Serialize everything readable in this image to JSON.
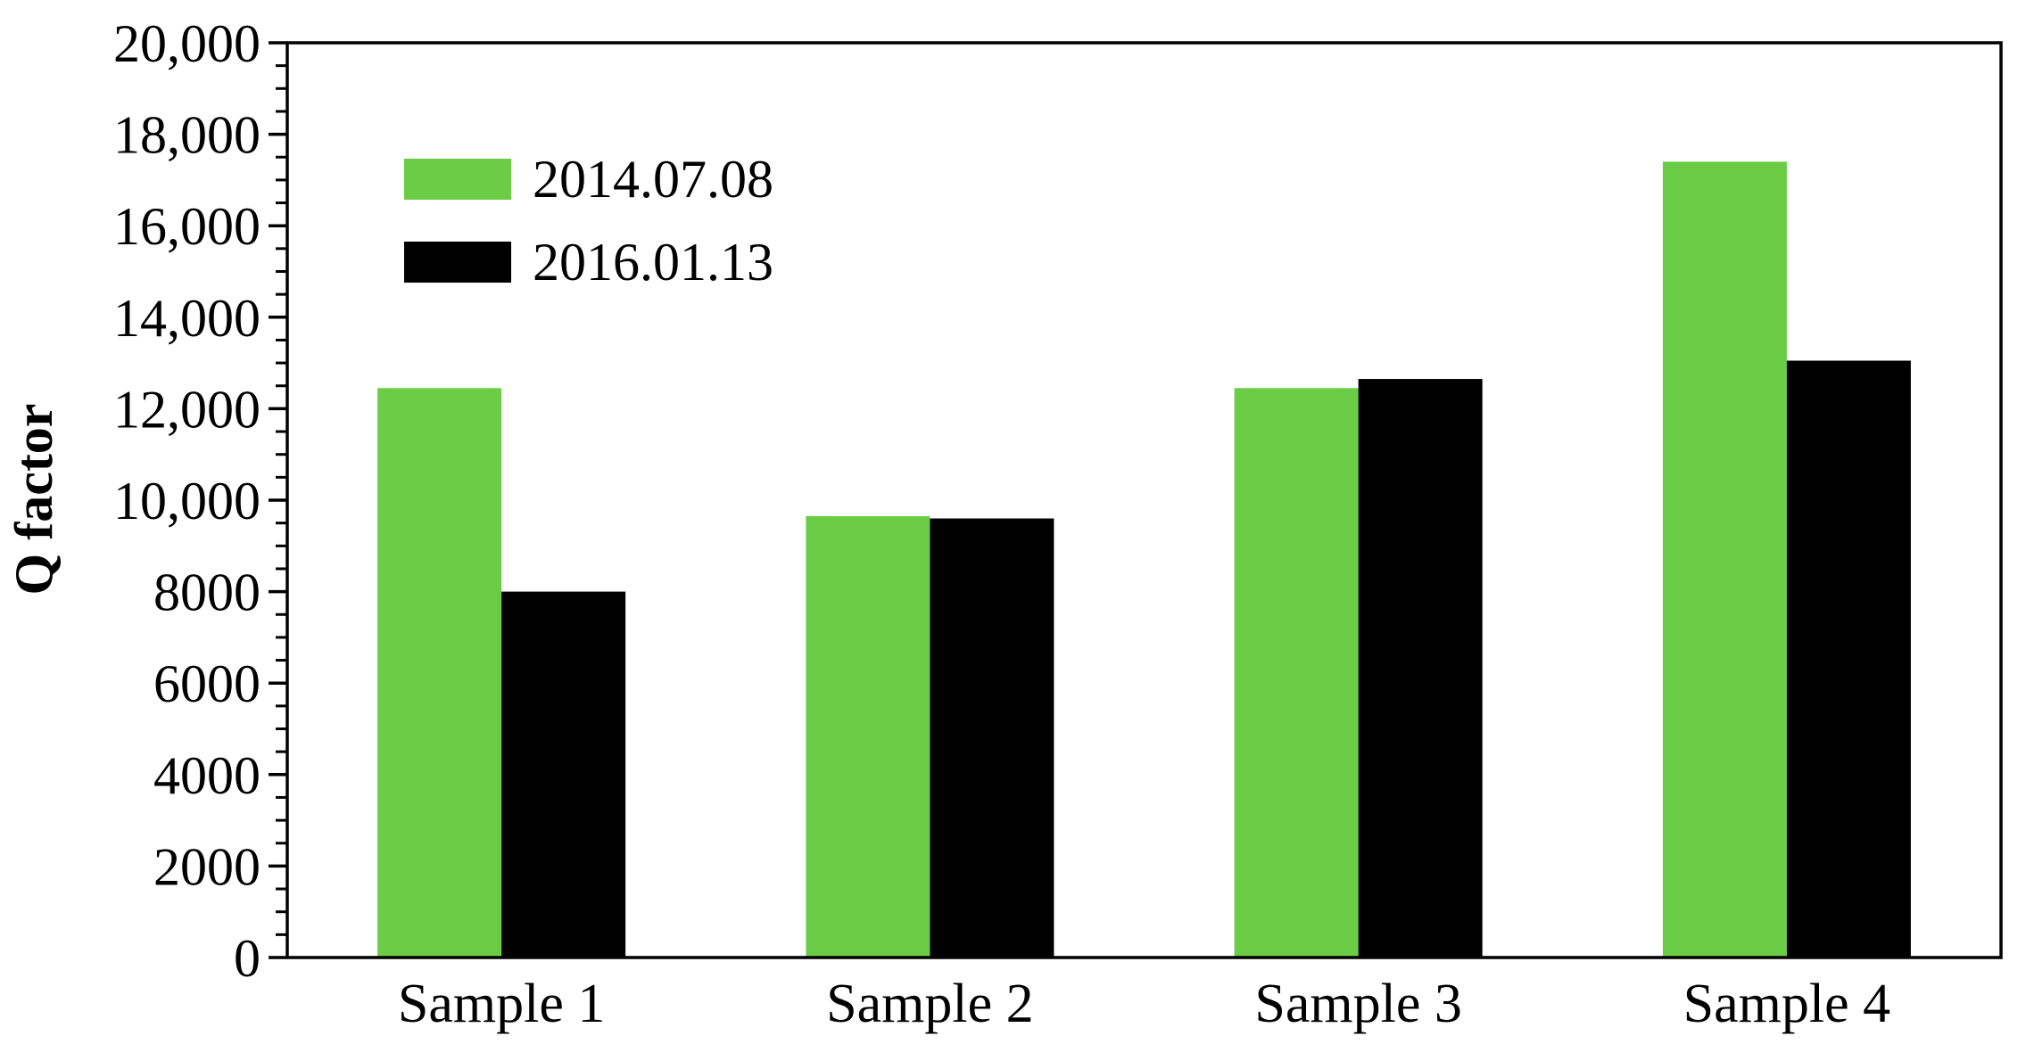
{
  "chart_data": {
    "type": "bar",
    "title": "",
    "categories": [
      "Sample 1",
      "Sample 2",
      "Sample 3",
      "Sample 4"
    ],
    "series": [
      {
        "name": "2014.07.08",
        "color": "#6acd45",
        "values": [
          12450,
          9650,
          12450,
          17400
        ]
      },
      {
        "name": "2016.01.13",
        "color": "#000000",
        "values": [
          8000,
          9600,
          12650,
          13050
        ]
      }
    ],
    "xlabel": "",
    "ylabel": "Q factor",
    "ylim": [
      0,
      20000
    ],
    "ytick_interval": 2000,
    "ytick_minor_interval": 500,
    "ytick_labels": [
      "0",
      "2000",
      "4000",
      "6000",
      "8000",
      "10,000",
      "12,000",
      "14,000",
      "16,000",
      "18,000",
      "20,000"
    ],
    "grid": false,
    "legend_position": "upper-left-inside",
    "frame": true,
    "axis_color": "#000000",
    "background": "#ffffff"
  }
}
